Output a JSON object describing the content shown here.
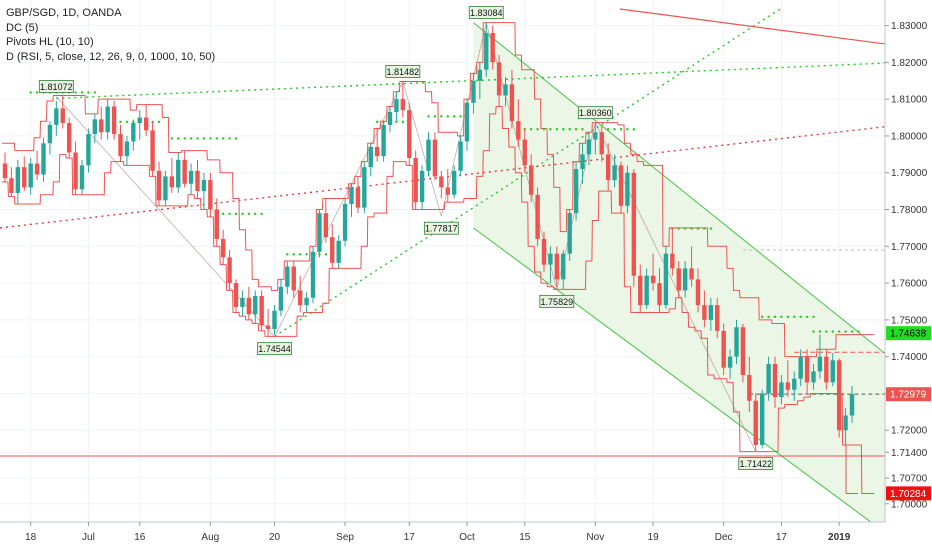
{
  "legend": {
    "symbol": "GBP/SGD, 1D, OANDA",
    "dc": "DC (5)",
    "pivots": "Pivots HL (10, 10)",
    "d": "D (RSI, 5, close, 12, 26, 9, 0, 1000, 10, 50)"
  },
  "chart_data": {
    "type": "candlestick",
    "y_axis": {
      "ticks": [
        "1.83000",
        "1.82000",
        "1.81000",
        "1.80000",
        "1.79000",
        "1.78000",
        "1.77000",
        "1.76000",
        "1.75000",
        "1.74000",
        "1.73000",
        "1.72000",
        "1.71400",
        "1.70700",
        "1.70000"
      ],
      "ylim": [
        1.6975,
        1.8345
      ]
    },
    "x_axis": {
      "ticks": [
        "18",
        "Jul",
        "16",
        "Aug",
        "20",
        "Sep",
        "17",
        "Oct",
        "15",
        "Nov",
        "19",
        "Dec",
        "17",
        "2019"
      ]
    },
    "price_tags": [
      {
        "label": "1.74638",
        "value": 1.74638,
        "color": "#22dd22",
        "text_color": "#000000"
      },
      {
        "label": "1.72979",
        "value": 1.72979,
        "color": "#ef5350",
        "text_color": "#ffffff"
      },
      {
        "label": "1.70284",
        "value": 1.70284,
        "color": "#ef1111",
        "text_color": "#ffffff"
      }
    ],
    "pivot_labels": [
      {
        "label": "1.81072",
        "value": 1.81072,
        "pos": "above"
      },
      {
        "label": "1.81482",
        "value": 1.81482,
        "pos": "above"
      },
      {
        "label": "1.83084",
        "value": 1.83084,
        "pos": "above"
      },
      {
        "label": "1.80360",
        "value": 1.8036,
        "pos": "above"
      },
      {
        "label": "1.74544",
        "value": 1.74544,
        "pos": "below"
      },
      {
        "label": "1.77817",
        "value": 1.77817,
        "pos": "below"
      },
      {
        "label": "1.75829",
        "value": 1.75829,
        "pos": "below"
      },
      {
        "label": "1.71422",
        "value": 1.71422,
        "pos": "below"
      }
    ],
    "candles": [
      [
        1.7925,
        1.7955,
        1.7875,
        1.7885
      ],
      [
        1.7885,
        1.7915,
        1.7835,
        1.7845
      ],
      [
        1.7845,
        1.7935,
        1.7815,
        1.7915
      ],
      [
        1.7915,
        1.7945,
        1.785,
        1.786
      ],
      [
        1.786,
        1.794,
        1.784,
        1.7925
      ],
      [
        1.7925,
        1.796,
        1.788,
        1.7895
      ],
      [
        1.7895,
        1.7995,
        1.7875,
        1.798
      ],
      [
        1.798,
        1.804,
        1.795,
        1.803
      ],
      [
        1.803,
        1.8095,
        1.8,
        1.8075
      ],
      [
        1.8075,
        1.811,
        1.802,
        1.8035
      ],
      [
        1.8035,
        1.805,
        1.794,
        1.7955
      ],
      [
        1.7955,
        1.7985,
        1.784,
        1.7855
      ],
      [
        1.7855,
        1.7935,
        1.784,
        1.792
      ],
      [
        1.792,
        1.802,
        1.79,
        1.8005
      ],
      [
        1.8005,
        1.806,
        1.798,
        1.8045
      ],
      [
        1.8045,
        1.808,
        1.799,
        1.801
      ],
      [
        1.801,
        1.81,
        1.799,
        1.808
      ],
      [
        1.808,
        1.8095,
        1.799,
        1.8005
      ],
      [
        1.8005,
        1.803,
        1.793,
        1.7945
      ],
      [
        1.7945,
        1.8,
        1.792,
        1.7985
      ],
      [
        1.7985,
        1.8045,
        1.796,
        1.8035
      ],
      [
        1.8035,
        1.807,
        1.799,
        1.805
      ],
      [
        1.805,
        1.8085,
        1.8,
        1.8015
      ],
      [
        1.8015,
        1.804,
        1.789,
        1.7905
      ],
      [
        1.7905,
        1.793,
        1.781,
        1.7825
      ],
      [
        1.7825,
        1.7905,
        1.781,
        1.789
      ],
      [
        1.789,
        1.794,
        1.7845,
        1.786
      ],
      [
        1.786,
        1.7955,
        1.7845,
        1.7935
      ],
      [
        1.7935,
        1.796,
        1.786,
        1.787
      ],
      [
        1.787,
        1.7925,
        1.784,
        1.7905
      ],
      [
        1.7905,
        1.7935,
        1.783,
        1.785
      ],
      [
        1.785,
        1.79,
        1.78,
        1.788
      ],
      [
        1.788,
        1.79,
        1.778,
        1.78
      ],
      [
        1.78,
        1.783,
        1.77,
        1.772
      ],
      [
        1.772,
        1.7745,
        1.765,
        1.767
      ],
      [
        1.767,
        1.769,
        1.758,
        1.76
      ],
      [
        1.76,
        1.761,
        1.752,
        1.7535
      ],
      [
        1.7535,
        1.758,
        1.751,
        1.756
      ],
      [
        1.756,
        1.759,
        1.75,
        1.7515
      ],
      [
        1.7515,
        1.758,
        1.749,
        1.7565
      ],
      [
        1.7565,
        1.758,
        1.747,
        1.7485
      ],
      [
        1.7485,
        1.753,
        1.7455,
        1.7475
      ],
      [
        1.7475,
        1.754,
        1.746,
        1.7525
      ],
      [
        1.7525,
        1.761,
        1.751,
        1.759
      ],
      [
        1.759,
        1.766,
        1.757,
        1.7645
      ],
      [
        1.7645,
        1.766,
        1.756,
        1.758
      ],
      [
        1.758,
        1.762,
        1.752,
        1.754
      ],
      [
        1.754,
        1.7575,
        1.752,
        1.756
      ],
      [
        1.756,
        1.77,
        1.7545,
        1.7685
      ],
      [
        1.7685,
        1.78,
        1.767,
        1.779
      ],
      [
        1.779,
        1.783,
        1.771,
        1.7725
      ],
      [
        1.7725,
        1.776,
        1.764,
        1.7655
      ],
      [
        1.7655,
        1.773,
        1.764,
        1.7715
      ],
      [
        1.7715,
        1.783,
        1.77,
        1.7815
      ],
      [
        1.7815,
        1.787,
        1.778,
        1.786
      ],
      [
        1.786,
        1.789,
        1.779,
        1.7805
      ],
      [
        1.7805,
        1.793,
        1.779,
        1.7915
      ],
      [
        1.7915,
        1.798,
        1.789,
        1.797
      ],
      [
        1.797,
        1.802,
        1.793,
        1.7945
      ],
      [
        1.7945,
        1.804,
        1.793,
        1.803
      ],
      [
        1.803,
        1.808,
        1.801,
        1.8065
      ],
      [
        1.8065,
        1.812,
        1.804,
        1.81
      ],
      [
        1.81,
        1.8148,
        1.805,
        1.807
      ],
      [
        1.807,
        1.809,
        1.792,
        1.794
      ],
      [
        1.794,
        1.796,
        1.78,
        1.782
      ],
      [
        1.782,
        1.792,
        1.78,
        1.7905
      ],
      [
        1.7905,
        1.801,
        1.789,
        1.799
      ],
      [
        1.799,
        1.801,
        1.788,
        1.789
      ],
      [
        1.789,
        1.7905,
        1.783,
        1.786
      ],
      [
        1.786,
        1.791,
        1.782,
        1.784
      ],
      [
        1.784,
        1.792,
        1.783,
        1.7905
      ],
      [
        1.7905,
        1.8,
        1.789,
        1.7985
      ],
      [
        1.7985,
        1.81,
        1.796,
        1.809
      ],
      [
        1.809,
        1.817,
        1.806,
        1.815
      ],
      [
        1.815,
        1.82,
        1.81,
        1.818
      ],
      [
        1.818,
        1.8308,
        1.816,
        1.828
      ],
      [
        1.828,
        1.83,
        1.818,
        1.82
      ],
      [
        1.82,
        1.822,
        1.808,
        1.811
      ],
      [
        1.811,
        1.816,
        1.808,
        1.814
      ],
      [
        1.814,
        1.818,
        1.802,
        1.804
      ],
      [
        1.804,
        1.81,
        1.797,
        1.799
      ],
      [
        1.799,
        1.802,
        1.79,
        1.792
      ],
      [
        1.792,
        1.795,
        1.782,
        1.784
      ],
      [
        1.784,
        1.786,
        1.77,
        1.772
      ],
      [
        1.772,
        1.774,
        1.763,
        1.765
      ],
      [
        1.765,
        1.77,
        1.76,
        1.768
      ],
      [
        1.768,
        1.77,
        1.759,
        1.761
      ],
      [
        1.761,
        1.769,
        1.7583,
        1.768
      ],
      [
        1.768,
        1.78,
        1.766,
        1.779
      ],
      [
        1.779,
        1.793,
        1.777,
        1.791
      ],
      [
        1.791,
        1.798,
        1.787,
        1.795
      ],
      [
        1.795,
        1.801,
        1.792,
        1.799
      ],
      [
        1.799,
        1.8036,
        1.795,
        1.801
      ],
      [
        1.801,
        1.803,
        1.793,
        1.795
      ],
      [
        1.795,
        1.798,
        1.785,
        1.788
      ],
      [
        1.788,
        1.795,
        1.786,
        1.792
      ],
      [
        1.792,
        1.793,
        1.779,
        1.781
      ],
      [
        1.781,
        1.792,
        1.779,
        1.79
      ],
      [
        1.79,
        1.791,
        1.759,
        1.762
      ],
      [
        1.762,
        1.765,
        1.752,
        1.754
      ],
      [
        1.754,
        1.764,
        1.753,
        1.762
      ],
      [
        1.762,
        1.768,
        1.758,
        1.76
      ],
      [
        1.76,
        1.764,
        1.752,
        1.754
      ],
      [
        1.754,
        1.77,
        1.753,
        1.768
      ],
      [
        1.768,
        1.775,
        1.762,
        1.764
      ],
      [
        1.764,
        1.766,
        1.756,
        1.758
      ],
      [
        1.758,
        1.766,
        1.756,
        1.764
      ],
      [
        1.764,
        1.77,
        1.759,
        1.761
      ],
      [
        1.761,
        1.764,
        1.752,
        1.754
      ],
      [
        1.754,
        1.758,
        1.748,
        1.75
      ],
      [
        1.75,
        1.756,
        1.747,
        1.754
      ],
      [
        1.754,
        1.756,
        1.745,
        1.747
      ],
      [
        1.747,
        1.749,
        1.735,
        1.737
      ],
      [
        1.737,
        1.742,
        1.734,
        1.74
      ],
      [
        1.74,
        1.75,
        1.738,
        1.748
      ],
      [
        1.748,
        1.749,
        1.733,
        1.735
      ],
      [
        1.735,
        1.74,
        1.725,
        1.728
      ],
      [
        1.728,
        1.73,
        1.7142,
        1.716
      ],
      [
        1.716,
        1.731,
        1.715,
        1.73
      ],
      [
        1.73,
        1.74,
        1.728,
        1.738
      ],
      [
        1.738,
        1.74,
        1.726,
        1.729
      ],
      [
        1.729,
        1.735,
        1.727,
        1.733
      ],
      [
        1.733,
        1.739,
        1.729,
        1.731
      ],
      [
        1.731,
        1.736,
        1.728,
        1.734
      ],
      [
        1.734,
        1.742,
        1.732,
        1.74
      ],
      [
        1.74,
        1.742,
        1.73,
        1.733
      ],
      [
        1.733,
        1.738,
        1.731,
        1.736
      ],
      [
        1.736,
        1.746,
        1.734,
        1.74
      ],
      [
        1.74,
        1.742,
        1.731,
        1.733
      ],
      [
        1.733,
        1.741,
        1.732,
        1.739
      ],
      [
        1.739,
        1.7395,
        1.718,
        1.72
      ],
      [
        1.72,
        1.726,
        1.716,
        1.724
      ],
      [
        1.724,
        1.732,
        1.722,
        1.7298
      ]
    ],
    "donchian_upper": [
      1.798,
      1.798,
      1.796,
      1.796,
      1.796,
      1.7995,
      1.804,
      1.8095,
      1.811,
      1.811,
      1.811,
      1.811,
      1.811,
      1.806,
      1.806,
      1.81,
      1.81,
      1.81,
      1.81,
      1.81,
      1.807,
      1.8085,
      1.8085,
      1.8085,
      1.8085,
      1.805,
      1.7955,
      1.7955,
      1.796,
      1.796,
      1.796,
      1.796,
      1.7935,
      1.7935,
      1.79,
      1.79,
      1.783,
      1.7745,
      1.769,
      1.761,
      1.759,
      1.759,
      1.758,
      1.761,
      1.766,
      1.766,
      1.766,
      1.766,
      1.77,
      1.78,
      1.783,
      1.783,
      1.783,
      1.783,
      1.787,
      1.789,
      1.793,
      1.798,
      1.802,
      1.804,
      1.808,
      1.812,
      1.8148,
      1.8148,
      1.8148,
      1.8148,
      1.812,
      1.809,
      1.801,
      1.801,
      1.801,
      1.8,
      1.81,
      1.817,
      1.82,
      1.8308,
      1.8308,
      1.8308,
      1.8308,
      1.8308,
      1.822,
      1.818,
      1.818,
      1.81,
      1.802,
      1.795,
      1.786,
      1.774,
      1.78,
      1.793,
      1.798,
      1.801,
      1.8036,
      1.8036,
      1.8036,
      1.8036,
      1.803,
      1.798,
      1.795,
      1.793,
      1.792,
      1.792,
      1.792,
      1.77,
      1.775,
      1.775,
      1.775,
      1.775,
      1.775,
      1.775,
      1.77,
      1.77,
      1.77,
      1.764,
      1.758,
      1.756,
      1.756,
      1.756,
      1.75,
      1.75,
      1.749,
      1.749,
      1.74,
      1.74,
      1.74,
      1.74,
      1.74,
      1.742,
      1.742,
      1.742,
      1.746,
      1.746,
      1.746,
      1.746,
      1.746,
      1.746
    ],
    "donchian_lower": [
      1.7875,
      1.7835,
      1.7815,
      1.7815,
      1.7815,
      1.7815,
      1.784,
      1.784,
      1.7875,
      1.795,
      1.794,
      1.784,
      1.784,
      1.784,
      1.784,
      1.784,
      1.79,
      1.793,
      1.793,
      1.792,
      1.792,
      1.792,
      1.792,
      1.789,
      1.781,
      1.781,
      1.781,
      1.781,
      1.781,
      1.784,
      1.783,
      1.78,
      1.778,
      1.77,
      1.765,
      1.758,
      1.752,
      1.751,
      1.75,
      1.749,
      1.747,
      1.7455,
      1.7455,
      1.7455,
      1.7455,
      1.7455,
      1.751,
      1.752,
      1.752,
      1.752,
      1.7545,
      1.764,
      1.764,
      1.764,
      1.764,
      1.764,
      1.77,
      1.778,
      1.779,
      1.779,
      1.789,
      1.793,
      1.793,
      1.792,
      1.78,
      1.78,
      1.78,
      1.78,
      1.78,
      1.782,
      1.782,
      1.782,
      1.783,
      1.783,
      1.789,
      1.796,
      1.806,
      1.808,
      1.802,
      1.797,
      1.79,
      1.782,
      1.77,
      1.763,
      1.76,
      1.759,
      1.7583,
      1.7583,
      1.7583,
      1.7583,
      1.7583,
      1.766,
      1.777,
      1.785,
      1.785,
      1.779,
      1.779,
      1.759,
      1.752,
      1.752,
      1.752,
      1.752,
      1.752,
      1.752,
      1.753,
      1.756,
      1.752,
      1.748,
      1.747,
      1.745,
      1.735,
      1.734,
      1.734,
      1.733,
      1.725,
      1.7142,
      1.7142,
      1.7142,
      1.7142,
      1.7142,
      1.7142,
      1.726,
      1.727,
      1.727,
      1.728,
      1.729,
      1.73,
      1.73,
      1.73,
      1.73,
      1.73,
      1.716,
      1.716,
      1.716,
      1.7028,
      1.7028
    ],
    "pivot_high_dots": [
      1.811,
      1.811,
      1.811,
      1.7995,
      1.8148,
      1.8308,
      1.8036,
      1.775,
      1.75,
      1.746
    ],
    "trend_lines": [
      {
        "name": "red-solid-top",
        "style": "solid",
        "color": "#ef5350"
      },
      {
        "name": "green-dotted-high",
        "style": "dotted",
        "color": "#22c922"
      },
      {
        "name": "green-dotted-low",
        "style": "dotted",
        "color": "#22c922"
      },
      {
        "name": "red-dotted",
        "style": "dotted",
        "color": "#e53935"
      },
      {
        "name": "horizontal-support",
        "style": "solid",
        "color": "#ef5350",
        "value": 1.713
      },
      {
        "name": "dashed-resistance",
        "style": "dashed",
        "color": "#ef5350",
        "value": 1.7412
      },
      {
        "name": "dashed-current",
        "style": "dashed",
        "color": "#555555",
        "value": 1.7298
      },
      {
        "name": "dashed-top",
        "style": "dashed",
        "color": "#bbbbbb",
        "value": 1.769
      }
    ],
    "colors": {
      "up": "#26a69a",
      "down": "#ef5350",
      "channel": "#43c443",
      "channel_fill": "#e8f5e2",
      "grid": "#f0f3fa"
    }
  }
}
